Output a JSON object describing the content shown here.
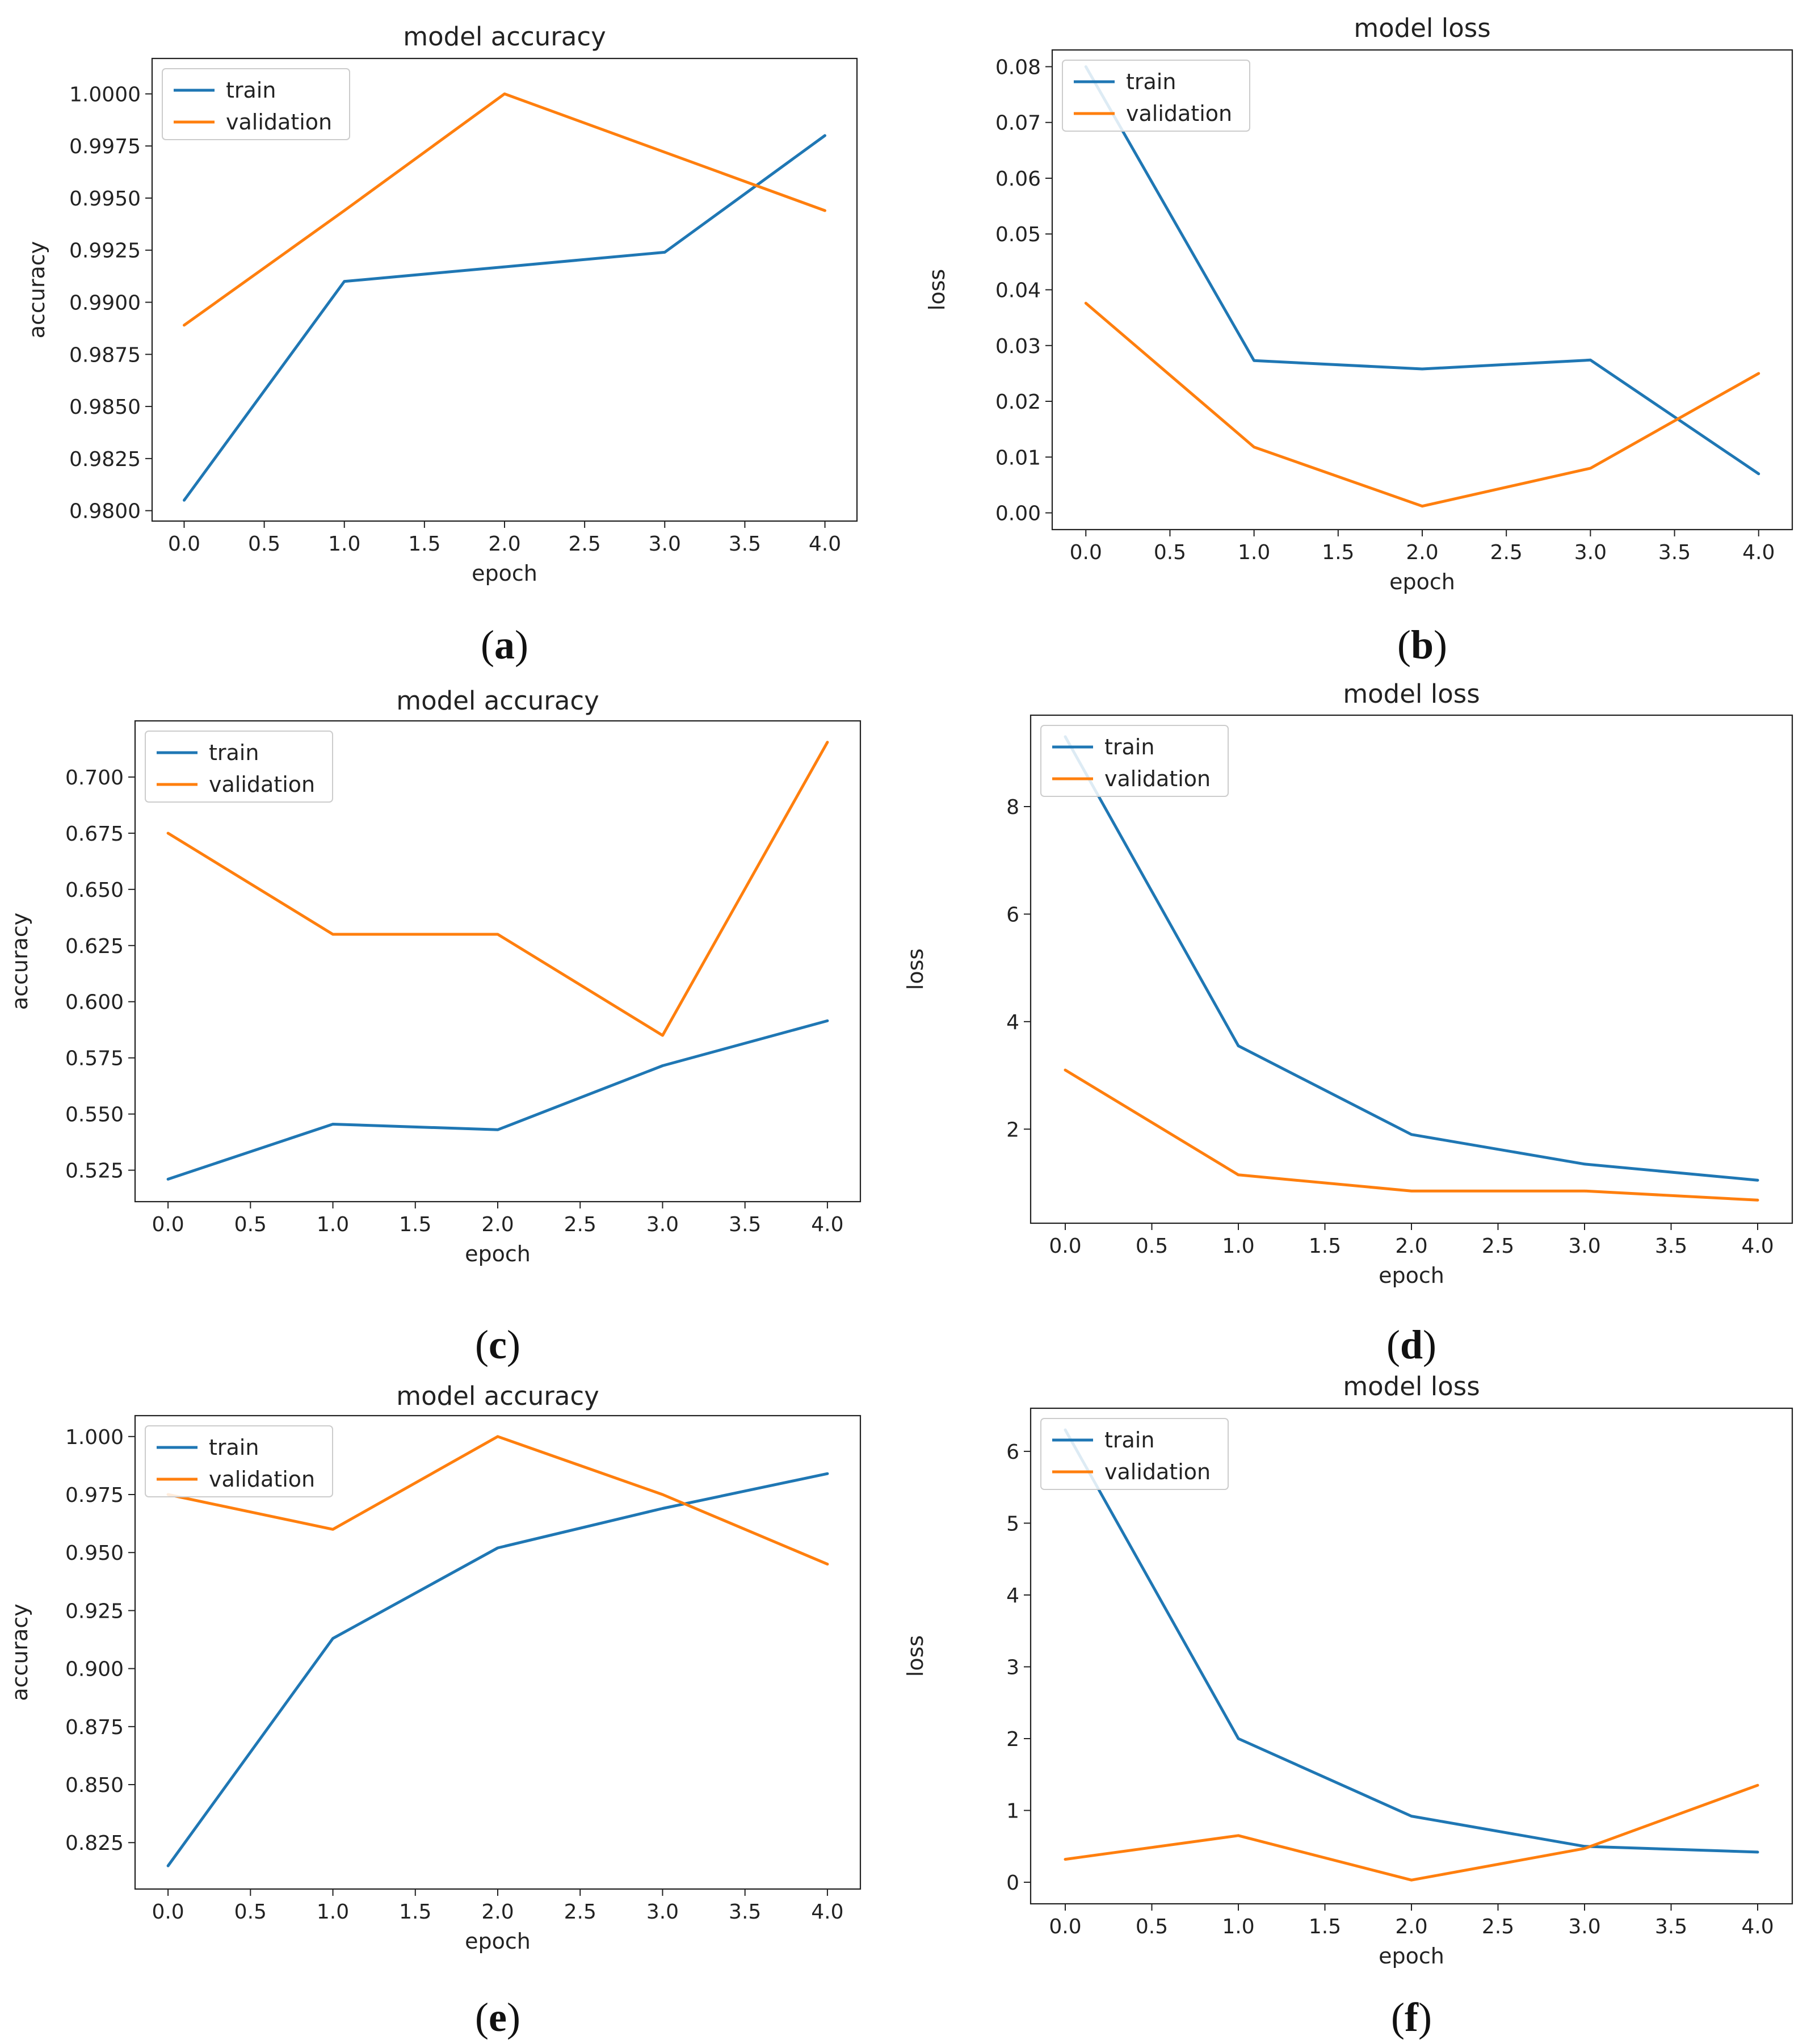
{
  "colors": {
    "train": "#1f77b4",
    "validation": "#ff7f0e"
  },
  "chart_data": [
    {
      "id": "a",
      "type": "line",
      "caption_letter": "a",
      "title": "model accuracy",
      "xlabel": "epoch",
      "ylabel": "accuracy",
      "x": [
        0,
        1,
        2,
        3,
        4
      ],
      "xlim": [
        -0.2,
        4.2
      ],
      "xticks": [
        0,
        0.5,
        1,
        1.5,
        2,
        2.5,
        3,
        3.5,
        4
      ],
      "xtick_labels": [
        "0.0",
        "0.5",
        "1.0",
        "1.5",
        "2.0",
        "2.5",
        "3.0",
        "3.5",
        "4.0"
      ],
      "ylim": [
        0.9795,
        1.0017
      ],
      "yticks": [
        0.98,
        0.9825,
        0.985,
        0.9875,
        0.99,
        0.9925,
        0.995,
        0.9975,
        1.0
      ],
      "ytick_labels": [
        "0.9800",
        "0.9825",
        "0.9850",
        "0.9875",
        "0.9900",
        "0.9925",
        "0.9950",
        "0.9975",
        "1.0000"
      ],
      "legend": "upper left",
      "series": [
        {
          "name": "train",
          "values": [
            0.9805,
            0.991,
            0.9917,
            0.9924,
            0.998
          ]
        },
        {
          "name": "validation",
          "values": [
            0.9889,
            0.9944,
            1.0,
            0.9972,
            0.9944
          ]
        }
      ]
    },
    {
      "id": "b",
      "type": "line",
      "caption_letter": "b",
      "title": "model loss",
      "xlabel": "epoch",
      "ylabel": "loss",
      "x": [
        0,
        1,
        2,
        3,
        4
      ],
      "xlim": [
        -0.2,
        4.2
      ],
      "xticks": [
        0,
        0.5,
        1,
        1.5,
        2,
        2.5,
        3,
        3.5,
        4
      ],
      "xtick_labels": [
        "0.0",
        "0.5",
        "1.0",
        "1.5",
        "2.0",
        "2.5",
        "3.0",
        "3.5",
        "4.0"
      ],
      "ylim": [
        -0.003,
        0.083
      ],
      "yticks": [
        0,
        0.01,
        0.02,
        0.03,
        0.04,
        0.05,
        0.06,
        0.07,
        0.08
      ],
      "ytick_labels": [
        "0.00",
        "0.01",
        "0.02",
        "0.03",
        "0.04",
        "0.05",
        "0.06",
        "0.07",
        "0.08"
      ],
      "legend": "upper left",
      "series": [
        {
          "name": "train",
          "values": [
            0.08,
            0.0273,
            0.0258,
            0.0274,
            0.007
          ]
        },
        {
          "name": "validation",
          "values": [
            0.0376,
            0.0118,
            0.0012,
            0.008,
            0.025
          ]
        }
      ]
    },
    {
      "id": "c",
      "type": "line",
      "caption_letter": "c",
      "title": "model accuracy",
      "xlabel": "epoch",
      "ylabel": "accuracy",
      "x": [
        0,
        1,
        2,
        3,
        4
      ],
      "xlim": [
        -0.2,
        4.2
      ],
      "xticks": [
        0,
        0.5,
        1,
        1.5,
        2,
        2.5,
        3,
        3.5,
        4
      ],
      "xtick_labels": [
        "0.0",
        "0.5",
        "1.0",
        "1.5",
        "2.0",
        "2.5",
        "3.0",
        "3.5",
        "4.0"
      ],
      "ylim": [
        0.511,
        0.725
      ],
      "yticks": [
        0.525,
        0.55,
        0.575,
        0.6,
        0.625,
        0.65,
        0.675,
        0.7
      ],
      "ytick_labels": [
        "0.525",
        "0.550",
        "0.575",
        "0.600",
        "0.625",
        "0.650",
        "0.675",
        "0.700"
      ],
      "legend": "upper left",
      "series": [
        {
          "name": "train",
          "values": [
            0.521,
            0.5455,
            0.543,
            0.5715,
            0.5915
          ]
        },
        {
          "name": "validation",
          "values": [
            0.675,
            0.63,
            0.63,
            0.585,
            0.7155
          ]
        }
      ]
    },
    {
      "id": "d",
      "type": "line",
      "caption_letter": "d",
      "title": "model loss",
      "xlabel": "epoch",
      "ylabel": "loss",
      "x": [
        0,
        1,
        2,
        3,
        4
      ],
      "xlim": [
        -0.2,
        4.2
      ],
      "xticks": [
        0,
        0.5,
        1,
        1.5,
        2,
        2.5,
        3,
        3.5,
        4
      ],
      "xtick_labels": [
        "0.0",
        "0.5",
        "1.0",
        "1.5",
        "2.0",
        "2.5",
        "3.0",
        "3.5",
        "4.0"
      ],
      "ylim": [
        0.25,
        9.7
      ],
      "yticks": [
        2,
        4,
        6,
        8
      ],
      "ytick_labels": [
        "2",
        "4",
        "6",
        "8"
      ],
      "legend": "upper left",
      "series": [
        {
          "name": "train",
          "values": [
            9.3,
            3.55,
            1.9,
            1.35,
            1.05
          ]
        },
        {
          "name": "validation",
          "values": [
            3.1,
            1.15,
            0.85,
            0.85,
            0.68
          ]
        }
      ]
    },
    {
      "id": "e",
      "type": "line",
      "caption_letter": "e",
      "title": "model accuracy",
      "xlabel": "epoch",
      "ylabel": "accuracy",
      "x": [
        0,
        1,
        2,
        3,
        4
      ],
      "xlim": [
        -0.2,
        4.2
      ],
      "xticks": [
        0,
        0.5,
        1,
        1.5,
        2,
        2.5,
        3,
        3.5,
        4
      ],
      "xtick_labels": [
        "0.0",
        "0.5",
        "1.0",
        "1.5",
        "2.0",
        "2.5",
        "3.0",
        "3.5",
        "4.0"
      ],
      "ylim": [
        0.805,
        1.009
      ],
      "yticks": [
        0.825,
        0.85,
        0.875,
        0.9,
        0.925,
        0.95,
        0.975,
        1.0
      ],
      "ytick_labels": [
        "0.825",
        "0.850",
        "0.875",
        "0.900",
        "0.925",
        "0.950",
        "0.975",
        "1.000"
      ],
      "legend": "upper left",
      "series": [
        {
          "name": "train",
          "values": [
            0.815,
            0.913,
            0.952,
            0.969,
            0.984
          ]
        },
        {
          "name": "validation",
          "values": [
            0.975,
            0.96,
            1.0,
            0.975,
            0.945
          ]
        }
      ]
    },
    {
      "id": "f",
      "type": "line",
      "caption_letter": "f",
      "title": "model loss",
      "xlabel": "epoch",
      "ylabel": "loss",
      "x": [
        0,
        1,
        2,
        3,
        4
      ],
      "xlim": [
        -0.2,
        4.2
      ],
      "xticks": [
        0,
        0.5,
        1,
        1.5,
        2,
        2.5,
        3,
        3.5,
        4
      ],
      "xtick_labels": [
        "0.0",
        "0.5",
        "1.0",
        "1.5",
        "2.0",
        "2.5",
        "3.0",
        "3.5",
        "4.0"
      ],
      "ylim": [
        -0.3,
        6.6
      ],
      "yticks": [
        0,
        1,
        2,
        3,
        4,
        5,
        6
      ],
      "ytick_labels": [
        "0",
        "1",
        "2",
        "3",
        "4",
        "5",
        "6"
      ],
      "legend": "upper left",
      "series": [
        {
          "name": "train",
          "values": [
            6.3,
            2.0,
            0.92,
            0.5,
            0.42
          ]
        },
        {
          "name": "validation",
          "values": [
            0.32,
            0.65,
            0.03,
            0.47,
            1.35
          ]
        }
      ]
    }
  ]
}
